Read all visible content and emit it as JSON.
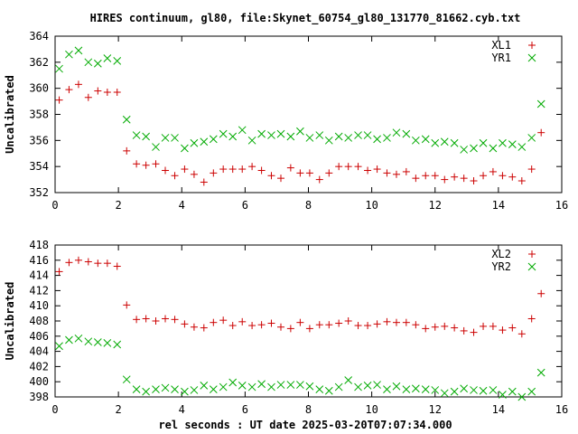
{
  "title": "HIRES continuum, gl80, file:Skynet_60754_gl80_131770_81662.cyb.txt",
  "xlabel": "rel seconds : UT date 2025-03-20T07:07:34.000",
  "colors": {
    "red": "#cc0000",
    "green": "#00aa00",
    "axis": "#000000"
  },
  "chart_data": [
    {
      "type": "scatter",
      "ylabel": "Uncalibrated",
      "xlim": [
        0,
        16
      ],
      "ylim": [
        352,
        364
      ],
      "xticks": [
        0,
        2,
        4,
        6,
        8,
        10,
        12,
        14,
        16
      ],
      "yticks": [
        352,
        354,
        356,
        358,
        360,
        362,
        364
      ],
      "legend_position": "top-right",
      "series": [
        {
          "name": "XL1",
          "marker": "plus",
          "color": "#cc0000",
          "x": [
            0.13,
            0.44,
            0.74,
            1.05,
            1.35,
            1.65,
            1.96,
            2.26,
            2.57,
            2.87,
            3.18,
            3.48,
            3.78,
            4.09,
            4.39,
            4.7,
            5.0,
            5.31,
            5.61,
            5.91,
            6.22,
            6.52,
            6.83,
            7.13,
            7.44,
            7.74,
            8.04,
            8.35,
            8.65,
            8.96,
            9.26,
            9.57,
            9.87,
            10.17,
            10.48,
            10.78,
            11.09,
            11.39,
            11.7,
            12.0,
            12.3,
            12.61,
            12.91,
            13.22,
            13.52,
            13.83,
            14.13,
            14.44,
            14.74,
            15.05,
            15.35
          ],
          "y": [
            359.1,
            359.9,
            360.3,
            359.3,
            359.8,
            359.7,
            359.7,
            355.2,
            354.2,
            354.1,
            354.2,
            353.7,
            353.3,
            353.8,
            353.4,
            352.8,
            353.5,
            353.8,
            353.8,
            353.8,
            354.0,
            353.7,
            353.3,
            353.1,
            353.9,
            353.5,
            353.5,
            353.0,
            353.5,
            354.0,
            354.0,
            354.0,
            353.7,
            353.8,
            353.5,
            353.4,
            353.6,
            353.1,
            353.3,
            353.3,
            353.0,
            353.2,
            353.1,
            352.9,
            353.3,
            353.6,
            353.3,
            353.2,
            352.9,
            353.8,
            356.6
          ]
        },
        {
          "name": "YR1",
          "marker": "cross",
          "color": "#00aa00",
          "x": [
            0.13,
            0.44,
            0.74,
            1.05,
            1.35,
            1.65,
            1.96,
            2.26,
            2.57,
            2.87,
            3.18,
            3.48,
            3.78,
            4.09,
            4.39,
            4.7,
            5.0,
            5.31,
            5.61,
            5.91,
            6.22,
            6.52,
            6.83,
            7.13,
            7.44,
            7.74,
            8.04,
            8.35,
            8.65,
            8.96,
            9.26,
            9.57,
            9.87,
            10.17,
            10.48,
            10.78,
            11.09,
            11.39,
            11.7,
            12.0,
            12.3,
            12.61,
            12.91,
            13.22,
            13.52,
            13.83,
            14.13,
            14.44,
            14.74,
            15.05,
            15.35
          ],
          "y": [
            361.5,
            362.6,
            362.9,
            362.0,
            361.9,
            362.3,
            362.1,
            357.6,
            356.4,
            356.3,
            355.5,
            356.2,
            356.2,
            355.4,
            355.8,
            355.9,
            356.1,
            356.5,
            356.3,
            356.8,
            356.0,
            356.5,
            356.4,
            356.5,
            356.3,
            356.7,
            356.2,
            356.4,
            356.0,
            356.3,
            356.2,
            356.4,
            356.4,
            356.1,
            356.2,
            356.6,
            356.5,
            356.0,
            356.1,
            355.8,
            355.9,
            355.8,
            355.3,
            355.4,
            355.8,
            355.4,
            355.8,
            355.7,
            355.5,
            356.2,
            358.8
          ]
        }
      ]
    },
    {
      "type": "scatter",
      "ylabel": "Uncalibrated",
      "xlim": [
        0,
        16
      ],
      "ylim": [
        398,
        418
      ],
      "xticks": [
        0,
        2,
        4,
        6,
        8,
        10,
        12,
        14,
        16
      ],
      "yticks": [
        398,
        400,
        402,
        404,
        406,
        408,
        410,
        412,
        414,
        416,
        418
      ],
      "legend_position": "top-right",
      "series": [
        {
          "name": "XL2",
          "marker": "plus",
          "color": "#cc0000",
          "x": [
            0.13,
            0.44,
            0.74,
            1.05,
            1.35,
            1.65,
            1.96,
            2.26,
            2.57,
            2.87,
            3.18,
            3.48,
            3.78,
            4.09,
            4.39,
            4.7,
            5.0,
            5.31,
            5.61,
            5.91,
            6.22,
            6.52,
            6.83,
            7.13,
            7.44,
            7.74,
            8.04,
            8.35,
            8.65,
            8.96,
            9.26,
            9.57,
            9.87,
            10.17,
            10.48,
            10.78,
            11.09,
            11.39,
            11.7,
            12.0,
            12.3,
            12.61,
            12.91,
            13.22,
            13.52,
            13.83,
            14.13,
            14.44,
            14.74,
            15.05,
            15.35
          ],
          "y": [
            414.5,
            415.7,
            416.0,
            415.8,
            415.6,
            415.6,
            415.2,
            410.1,
            408.2,
            408.3,
            408.0,
            408.3,
            408.2,
            407.6,
            407.2,
            407.1,
            407.8,
            408.1,
            407.4,
            407.9,
            407.4,
            407.5,
            407.7,
            407.2,
            407.0,
            407.8,
            407.0,
            407.5,
            407.5,
            407.7,
            408.0,
            407.4,
            407.4,
            407.6,
            407.9,
            407.8,
            407.8,
            407.5,
            407.0,
            407.2,
            407.3,
            407.1,
            406.7,
            406.5,
            407.3,
            407.3,
            406.8,
            407.1,
            406.3,
            408.3,
            411.6
          ]
        },
        {
          "name": "YR2",
          "marker": "cross",
          "color": "#00aa00",
          "x": [
            0.13,
            0.44,
            0.74,
            1.05,
            1.35,
            1.65,
            1.96,
            2.26,
            2.57,
            2.87,
            3.18,
            3.48,
            3.78,
            4.09,
            4.39,
            4.7,
            5.0,
            5.31,
            5.61,
            5.91,
            6.22,
            6.52,
            6.83,
            7.13,
            7.44,
            7.74,
            8.04,
            8.35,
            8.65,
            8.96,
            9.26,
            9.57,
            9.87,
            10.17,
            10.48,
            10.78,
            11.09,
            11.39,
            11.7,
            12.0,
            12.3,
            12.61,
            12.91,
            13.22,
            13.52,
            13.83,
            14.13,
            14.44,
            14.74,
            15.05,
            15.35
          ],
          "y": [
            404.7,
            405.5,
            405.7,
            405.3,
            405.2,
            405.1,
            404.9,
            400.3,
            399.0,
            398.7,
            399.0,
            399.2,
            399.0,
            398.7,
            398.9,
            399.5,
            399.0,
            399.3,
            399.9,
            399.5,
            399.3,
            399.7,
            399.3,
            399.6,
            399.6,
            399.6,
            399.4,
            399.0,
            398.8,
            399.3,
            400.2,
            399.3,
            399.5,
            399.6,
            399.0,
            399.4,
            399.0,
            399.1,
            399.0,
            398.9,
            398.5,
            398.7,
            399.1,
            398.9,
            398.8,
            398.9,
            398.3,
            398.7,
            398.0,
            398.7,
            401.2
          ]
        }
      ]
    }
  ]
}
